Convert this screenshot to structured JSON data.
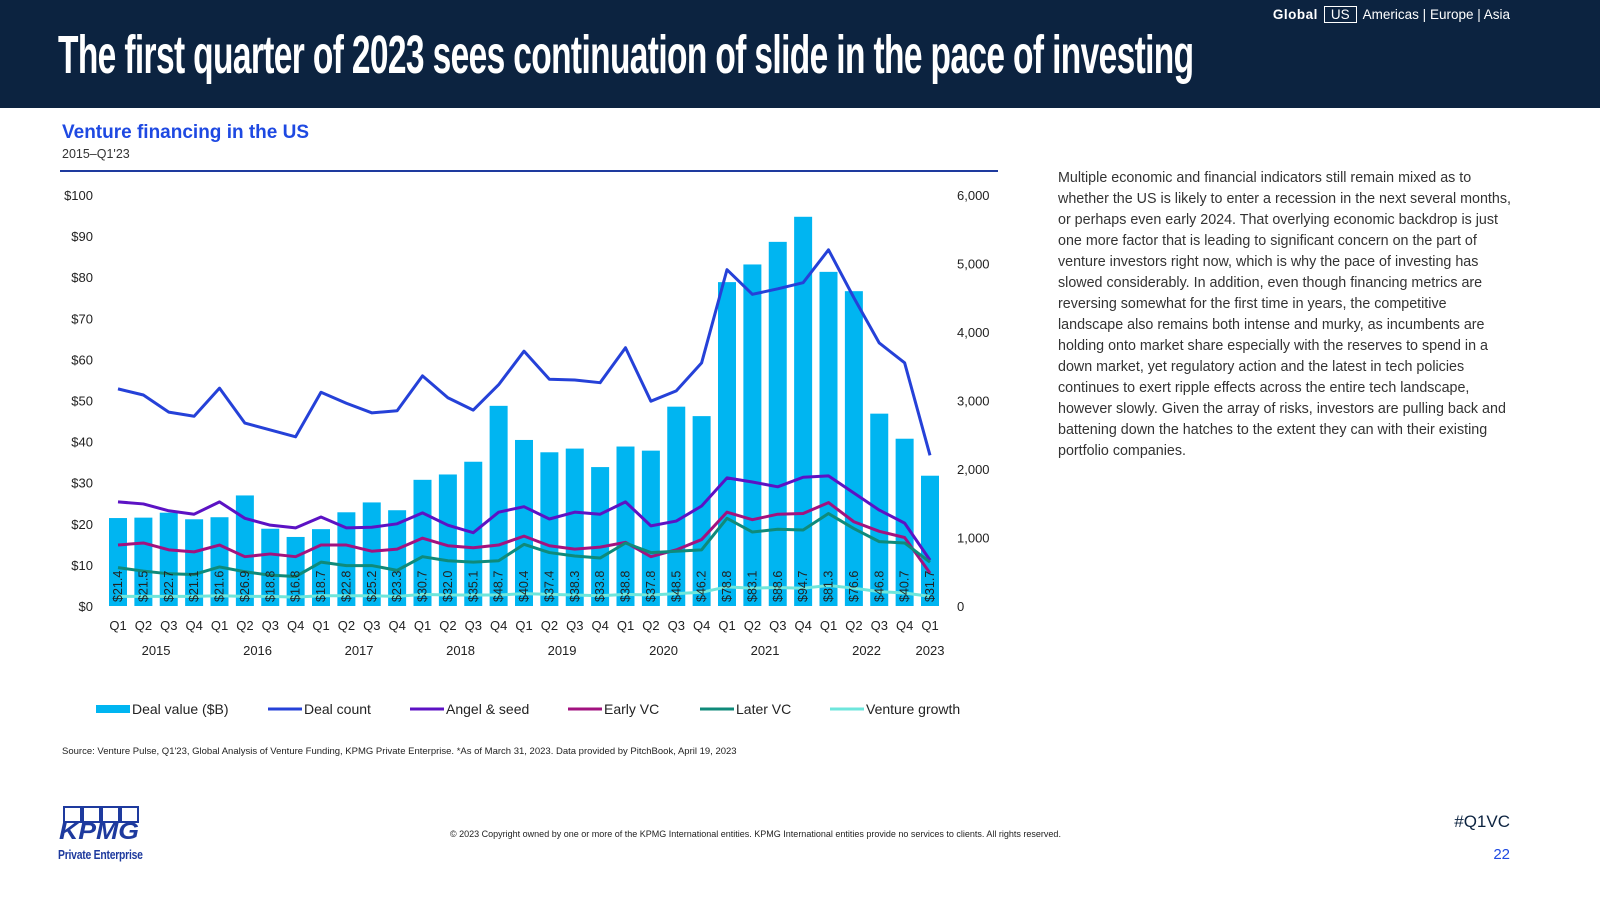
{
  "header": {
    "title": "The first quarter of 2023 sees continuation of slide in the pace of investing",
    "region_nav": {
      "global": "Global",
      "us": "US",
      "others": "Americas | Europe | Asia"
    }
  },
  "chart_title": "Venture financing in the US",
  "chart_subtitle": "2015–Q1'23",
  "body_text": "Multiple economic and financial indicators still remain mixed as to whether the US is likely to enter a recession in the next several months, or perhaps even early 2024. That overlying economic backdrop is just one more factor that is leading to significant concern on the part of venture investors right now, which is why the pace of investing has slowed considerably. In addition, even though financing metrics are reversing somewhat for the first time in years, the competitive landscape also remains both intense and murky, as incumbents are holding onto market share especially with the reserves to spend in a down market, yet regulatory action and the latest in tech policies continues to exert ripple effects across the entire tech landscape, however slowly. Given the array of risks, investors are pulling back and battening down the hatches to the extent they can with their existing portfolio companies.",
  "source": "Source: Venture Pulse, Q1'23, Global Analysis of Venture Funding, KPMG Private Enterprise. *As of March 31, 2023. Data provided by PitchBook, April 19, 2023",
  "footer": {
    "logo_text": "KPMG",
    "logo_sub": "Private Enterprise",
    "copyright": "© 2023 Copyright owned by one or more of the KPMG International entities. KPMG International entities provide no services to clients. All rights reserved.",
    "hashtag": "#Q1VC",
    "page": "22"
  },
  "colors": {
    "header": "#0c2340",
    "bar": "#00b5f1",
    "deal_count": "#2541d8",
    "angel": "#5c12c4",
    "early": "#a2127f",
    "later": "#0f8a7a",
    "growth": "#6ee6dc"
  },
  "chart_data": {
    "type": "bar+line",
    "categories": [
      "Q1",
      "Q2",
      "Q3",
      "Q4",
      "Q1",
      "Q2",
      "Q3",
      "Q4",
      "Q1",
      "Q2",
      "Q3",
      "Q4",
      "Q1",
      "Q2",
      "Q3",
      "Q4",
      "Q1",
      "Q2",
      "Q3",
      "Q4",
      "Q1",
      "Q2",
      "Q3",
      "Q4",
      "Q1",
      "Q2",
      "Q3",
      "Q4",
      "Q1",
      "Q2",
      "Q3",
      "Q4",
      "Q1"
    ],
    "years": [
      "2015",
      "2016",
      "2017",
      "2018",
      "2019",
      "2020",
      "2021",
      "2022",
      "2023"
    ],
    "left_axis": {
      "ticks": [
        "$0",
        "$10",
        "$20",
        "$30",
        "$40",
        "$50",
        "$60",
        "$70",
        "$80",
        "$90",
        "$100"
      ],
      "range": [
        0,
        100
      ]
    },
    "right_axis": {
      "ticks": [
        "0",
        "1,000",
        "2,000",
        "3,000",
        "4,000",
        "5,000",
        "6,000"
      ],
      "range": [
        0,
        6000
      ]
    },
    "bar_series": {
      "name": "Deal value ($B)",
      "values": [
        21.4,
        21.5,
        22.7,
        21.1,
        21.6,
        26.9,
        18.8,
        16.8,
        18.7,
        22.8,
        25.2,
        23.3,
        30.7,
        32.0,
        35.1,
        48.7,
        40.4,
        37.4,
        38.3,
        33.8,
        38.8,
        37.8,
        48.5,
        46.2,
        78.8,
        83.1,
        88.6,
        94.7,
        81.3,
        76.6,
        46.8,
        40.7,
        31.7
      ]
    },
    "line_series": [
      {
        "name": "Deal count",
        "values": [
          3170,
          3080,
          2830,
          2770,
          3180,
          2670,
          2570,
          2470,
          3120,
          2960,
          2820,
          2850,
          3360,
          3040,
          2860,
          3230,
          3720,
          3310,
          3300,
          3260,
          3770,
          2990,
          3140,
          3550,
          4910,
          4550,
          4630,
          4720,
          5200,
          4500,
          3840,
          3550,
          2200
        ]
      },
      {
        "name": "Angel & seed",
        "values": [
          1520,
          1490,
          1390,
          1340,
          1520,
          1280,
          1180,
          1140,
          1300,
          1140,
          1150,
          1200,
          1360,
          1180,
          1070,
          1370,
          1450,
          1270,
          1370,
          1340,
          1520,
          1170,
          1240,
          1460,
          1870,
          1810,
          1740,
          1880,
          1900,
          1650,
          1400,
          1210,
          670
        ]
      },
      {
        "name": "Early VC",
        "values": [
          890,
          920,
          820,
          790,
          890,
          720,
          760,
          720,
          890,
          890,
          800,
          830,
          990,
          880,
          850,
          890,
          1020,
          880,
          830,
          860,
          930,
          720,
          820,
          970,
          1370,
          1260,
          1340,
          1350,
          1510,
          1230,
          1090,
          1000,
          480
        ]
      },
      {
        "name": "Later VC",
        "values": [
          560,
          510,
          470,
          460,
          570,
          500,
          450,
          430,
          640,
          590,
          590,
          520,
          720,
          660,
          640,
          660,
          900,
          780,
          730,
          700,
          920,
          780,
          800,
          820,
          1280,
          1080,
          1120,
          1110,
          1350,
          1130,
          940,
          920,
          640
        ]
      },
      {
        "name": "Venture growth",
        "values": [
          140,
          140,
          140,
          140,
          150,
          140,
          140,
          130,
          150,
          150,
          150,
          140,
          170,
          160,
          160,
          160,
          180,
          170,
          160,
          150,
          170,
          160,
          180,
          200,
          280,
          260,
          270,
          260,
          300,
          260,
          210,
          190,
          140
        ]
      }
    ],
    "legend": [
      "Deal value ($B)",
      "Deal count",
      "Angel & seed",
      "Early VC",
      "Later VC",
      "Venture growth"
    ],
    "legend_position": "bottom"
  }
}
